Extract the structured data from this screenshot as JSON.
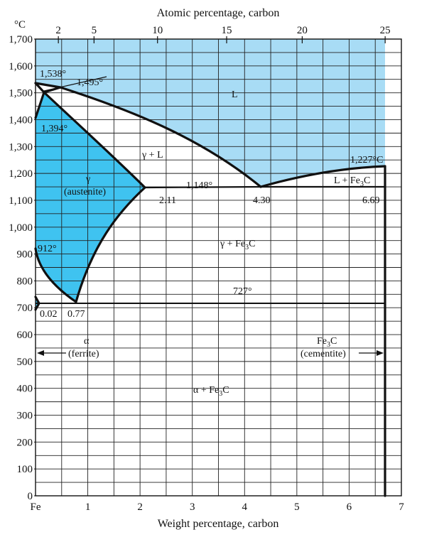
{
  "diagram": {
    "top_axis_title": "Atomic percentage, carbon",
    "bottom_axis_title": "Weight percentage, carbon",
    "temperature_unit": "°C",
    "top_ticks": [
      "2",
      "5",
      "10",
      "15",
      "20",
      "25"
    ],
    "bottom_ticks": [
      "Fe",
      "1",
      "2",
      "3",
      "4",
      "5",
      "6",
      "7"
    ],
    "y_ticks": [
      "1,700",
      "1,600",
      "1,500",
      "1,400",
      "1,300",
      "1,200",
      "1,100",
      "1,000",
      "900",
      "800",
      "700",
      "600",
      "500",
      "400",
      "300",
      "200",
      "100",
      "0"
    ],
    "labels": {
      "t1538": "1,538°",
      "t1495": "1,495°",
      "t1394": "1,394°",
      "t1227": "1,227°C",
      "t1148": "1,148°",
      "t912": "912°",
      "t727": "727°",
      "c211": "2.11",
      "c430": "4.30",
      "c669": "6.69",
      "c002": "0.02",
      "c077": "0.77",
      "liquid": "L",
      "gamma_l": "γ + L",
      "gamma": "γ",
      "austenite": "(austenite)",
      "l_fe3c_a": "L + Fe",
      "l_fe3c_sub": "3",
      "l_fe3c_b": "C",
      "gamma_fe3c_a": "γ + Fe",
      "gamma_fe3c_sub": "3",
      "gamma_fe3c_b": "C",
      "alpha": "α",
      "ferrite": "(ferrite)",
      "fe3c_a": "Fe",
      "fe3c_sub": "3",
      "fe3c_b": "C",
      "cementite": "(cementite)",
      "alpha_fe3c_a": "α + Fe",
      "alpha_fe3c_sub": "3",
      "alpha_fe3c_b": "C"
    },
    "colors": {
      "liquid": "#a8dcf5",
      "austenite": "#3fc3f0",
      "line": "#111111"
    }
  }
}
